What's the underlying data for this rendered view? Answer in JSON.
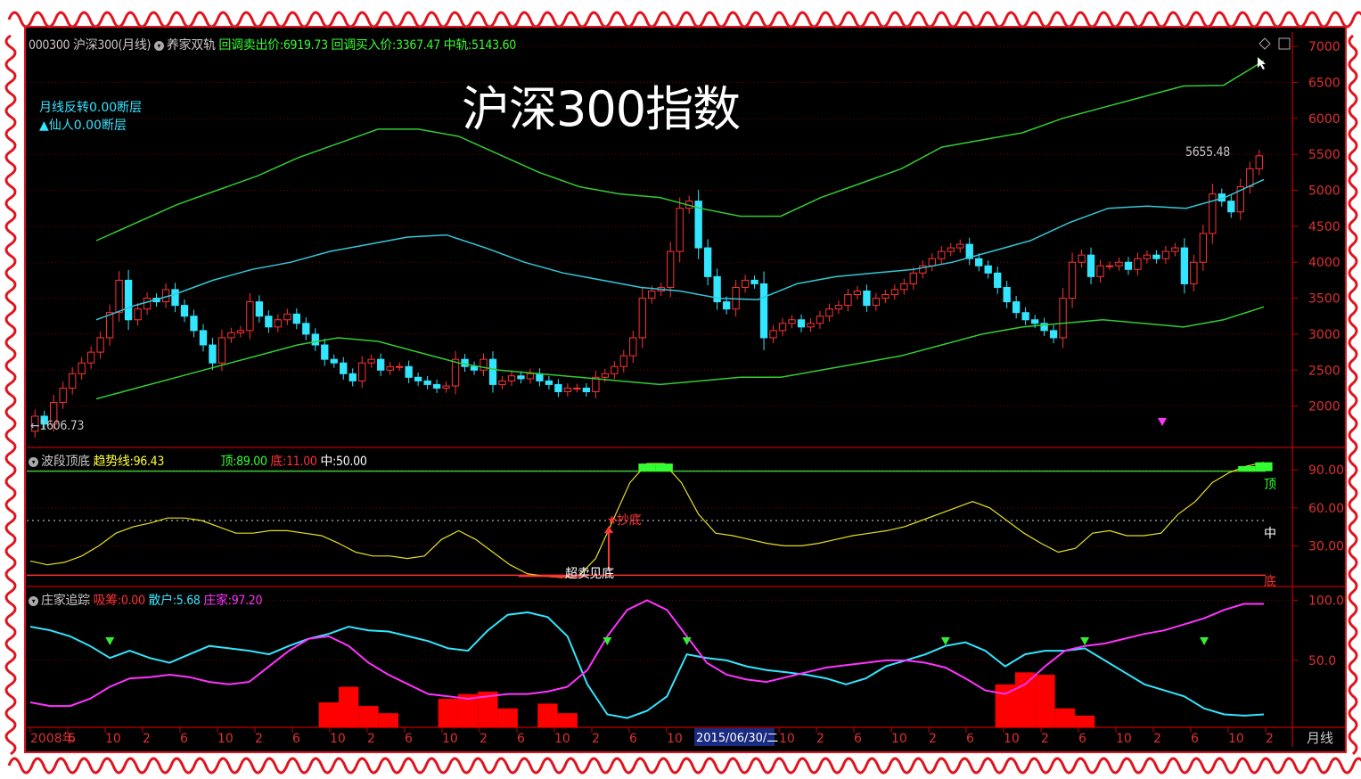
{
  "header": {
    "code_name": "000300 沪深300(月线)",
    "indicator_name": "养家双轨",
    "sell_label": "回调卖出价:",
    "sell_value": "6919.73",
    "buy_label": "回调买入价:",
    "buy_value": "3367.47",
    "mid_label": "中轨:",
    "mid_value": "5143.60"
  },
  "overlay_title": "沪深300指数",
  "notes": {
    "line1": "月线反转0.00断层",
    "line2": "▲仙人0.00断层"
  },
  "annotations": {
    "low_label": "←1606.73",
    "high_label": "5655.48"
  },
  "panel2_header": {
    "name": "波段顶底",
    "trend_label": "趋势线:",
    "trend_value": "96.43",
    "top_label": "顶:",
    "top_value": "89.00",
    "bottom_label": "底:",
    "bottom_value": "11.00",
    "mid_label": "中:",
    "mid_value": "50.00"
  },
  "panel2_labels": {
    "buy_star": "★抄底",
    "oversold": "超卖见底",
    "top": "顶",
    "mid": "中",
    "bottom": "底"
  },
  "panel3_header": {
    "name": "庄家追踪",
    "absorb_label": "吸筹:",
    "absorb_value": "0.00",
    "retail_label": "散户:",
    "retail_value": "5.68",
    "dealer_label": "庄家:",
    "dealer_value": "97.20"
  },
  "bottom_axis": {
    "ticks": [
      "2008年",
      "6",
      "10",
      "2",
      "6",
      "10",
      "2",
      "6",
      "10",
      "2",
      "6",
      "10",
      "2",
      "6",
      "10",
      "2",
      "6",
      "10",
      "2",
      "6",
      "10",
      "2",
      "6",
      "10",
      "2",
      "6",
      "10",
      "2",
      "6",
      "10",
      "2",
      "6",
      "10",
      "2"
    ],
    "highlight": "2015/06/30/二",
    "period": "月线"
  },
  "colors": {
    "up": "#ff3333",
    "down": "#33e5ff",
    "upper_band": "#33cc33",
    "mid_band": "#33c8d8",
    "lower_band": "#33cc33",
    "trend_line": "#e8e020",
    "retail_line": "#33e5ff",
    "dealer_line": "#ff33ff",
    "absorb_bar": "#ff0000",
    "grid": "#800000"
  },
  "chart_data": [
    {
      "type": "candlestick",
      "title": "沪深300指数",
      "y_ticks": [
        7000,
        6500,
        6000,
        5500,
        5000,
        4500,
        4000,
        3500,
        3000,
        2500,
        2000
      ],
      "ylim": [
        1450,
        7200
      ],
      "close": [
        1860,
        1750,
        2050,
        2250,
        2450,
        2600,
        2750,
        2950,
        3300,
        3750,
        3200,
        3350,
        3500,
        3450,
        3620,
        3400,
        3250,
        3050,
        2850,
        2600,
        2950,
        3020,
        3050,
        3450,
        3250,
        3100,
        3200,
        3280,
        3150,
        3000,
        2850,
        2650,
        2600,
        2450,
        2350,
        2600,
        2650,
        2500,
        2550,
        2550,
        2400,
        2350,
        2300,
        2250,
        2280,
        2650,
        2550,
        2500,
        2650,
        2300,
        2350,
        2420,
        2380,
        2450,
        2350,
        2300,
        2200,
        2250,
        2250,
        2200,
        2400,
        2450,
        2550,
        2700,
        2950,
        3500,
        3600,
        3650,
        4150,
        4750,
        4850,
        4200,
        3800,
        3450,
        3350,
        3650,
        3750,
        3700,
        2950,
        3050,
        3150,
        3200,
        3100,
        3150,
        3250,
        3350,
        3400,
        3550,
        3600,
        3400,
        3500,
        3550,
        3620,
        3700,
        3850,
        3950,
        4050,
        4150,
        4200,
        4250,
        4050,
        3950,
        3850,
        3650,
        3450,
        3300,
        3200,
        3150,
        3050,
        2950,
        3500,
        4000,
        4100,
        3800,
        3950,
        3950,
        4000,
        3900,
        4050,
        4100,
        4050,
        4150,
        4200,
        3700,
        4000,
        4400,
        4950,
        4850,
        4700,
        5050,
        5300,
        5480
      ],
      "value_labels": {
        "min": 1606.73,
        "max": 5655.48
      },
      "upper_band": [
        4300,
        4550,
        4800,
        5000,
        5200,
        5450,
        5650,
        5850,
        5850,
        5750,
        5500,
        5250,
        5050,
        4950,
        4900,
        4750,
        4640,
        4640,
        4900,
        5100,
        5300,
        5600,
        5700,
        5800,
        6000,
        6150,
        6300,
        6450,
        6460,
        6800
      ],
      "mid_band": [
        3200,
        3400,
        3550,
        3750,
        3900,
        4000,
        4150,
        4250,
        4350,
        4380,
        4200,
        4000,
        3850,
        3750,
        3650,
        3600,
        3500,
        3480,
        3700,
        3800,
        3850,
        3900,
        4000,
        4150,
        4300,
        4550,
        4750,
        4780,
        4750,
        4900,
        5150
      ],
      "lower_band": [
        2100,
        2250,
        2400,
        2550,
        2700,
        2850,
        2950,
        2900,
        2750,
        2600,
        2500,
        2450,
        2400,
        2350,
        2300,
        2350,
        2400,
        2400,
        2500,
        2600,
        2700,
        2850,
        3000,
        3100,
        3150,
        3200,
        3150,
        3100,
        3200,
        3380
      ]
    },
    {
      "type": "line",
      "title": "波段顶底",
      "y_ticks": [
        90,
        60,
        30
      ],
      "ylim": [
        0,
        100
      ],
      "reference_lines": {
        "top": 89,
        "mid": 50,
        "bottom": 11
      },
      "trend": [
        18,
        15,
        17,
        22,
        30,
        40,
        45,
        48,
        52,
        52,
        50,
        45,
        40,
        40,
        42,
        42,
        40,
        38,
        32,
        25,
        22,
        22,
        20,
        22,
        35,
        42,
        35,
        25,
        15,
        8,
        6,
        5,
        6,
        20,
        50,
        80,
        95,
        95,
        80,
        55,
        40,
        38,
        35,
        32,
        30,
        30,
        32,
        35,
        38,
        40,
        42,
        45,
        50,
        55,
        60,
        65,
        60,
        50,
        40,
        32,
        25,
        28,
        40,
        42,
        38,
        38,
        40,
        55,
        65,
        80,
        88,
        93,
        96
      ]
    },
    {
      "type": "line",
      "title": "庄家追踪",
      "y_ticks": [
        100,
        50
      ],
      "ylim": [
        -5,
        110
      ],
      "retail": [
        78,
        75,
        70,
        62,
        52,
        58,
        52,
        48,
        55,
        62,
        60,
        58,
        55,
        62,
        68,
        72,
        78,
        75,
        74,
        70,
        66,
        60,
        58,
        75,
        88,
        90,
        86,
        70,
        30,
        5,
        2,
        8,
        20,
        55,
        52,
        50,
        45,
        42,
        40,
        38,
        35,
        30,
        35,
        45,
        50,
        55,
        62,
        65,
        58,
        45,
        55,
        58,
        58,
        60,
        50,
        40,
        30,
        25,
        20,
        10,
        5,
        4,
        5
      ],
      "dealer": [
        15,
        12,
        12,
        18,
        28,
        35,
        36,
        38,
        36,
        32,
        30,
        32,
        45,
        58,
        68,
        70,
        62,
        48,
        38,
        30,
        22,
        20,
        18,
        20,
        22,
        22,
        24,
        28,
        42,
        70,
        92,
        100,
        92,
        70,
        48,
        38,
        34,
        32,
        36,
        40,
        44,
        46,
        48,
        50,
        50,
        48,
        44,
        35,
        25,
        22,
        30,
        45,
        58,
        62,
        64,
        68,
        72,
        75,
        80,
        85,
        92,
        97,
        97
      ],
      "absorb": [
        0,
        0,
        0,
        0,
        0,
        0,
        0,
        0,
        0,
        0,
        0,
        0,
        0,
        0,
        0,
        15,
        28,
        12,
        6,
        0,
        0,
        18,
        22,
        24,
        10,
        0,
        14,
        6,
        0,
        0,
        0,
        0,
        0,
        0,
        0,
        0,
        0,
        0,
        0,
        0,
        0,
        0,
        0,
        0,
        0,
        0,
        0,
        0,
        0,
        30,
        40,
        38,
        10,
        4,
        0,
        0,
        0,
        0,
        0,
        0,
        0,
        0,
        0
      ],
      "green_markers": [
        4,
        29,
        33,
        46,
        53,
        59
      ],
      "magenta_marker_main": [
        53
      ]
    }
  ]
}
